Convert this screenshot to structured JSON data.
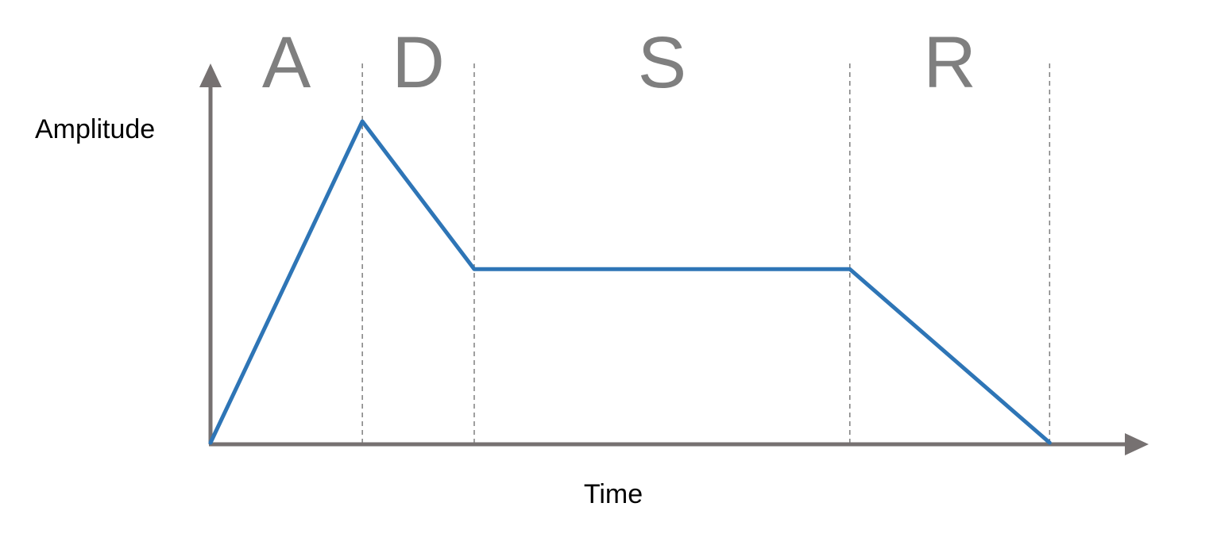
{
  "labels": {
    "y_axis": "Amplitude",
    "x_axis": "Time"
  },
  "phases": [
    {
      "label": "A",
      "start": 0,
      "end": 19
    },
    {
      "label": "D",
      "start": 19,
      "end": 33
    },
    {
      "label": "S",
      "start": 33,
      "end": 80
    },
    {
      "label": "R",
      "start": 80,
      "end": 105
    }
  ],
  "envelope_points": [
    {
      "t": 0,
      "amplitude": 0
    },
    {
      "t": 19,
      "amplitude": 1.0
    },
    {
      "t": 33,
      "amplitude": 0.54
    },
    {
      "t": 80,
      "amplitude": 0.54
    },
    {
      "t": 105,
      "amplitude": 0
    }
  ],
  "colors": {
    "envelope": "#2e75b6",
    "axes": "#767171",
    "phase_labels": "#7f7f7f"
  }
}
